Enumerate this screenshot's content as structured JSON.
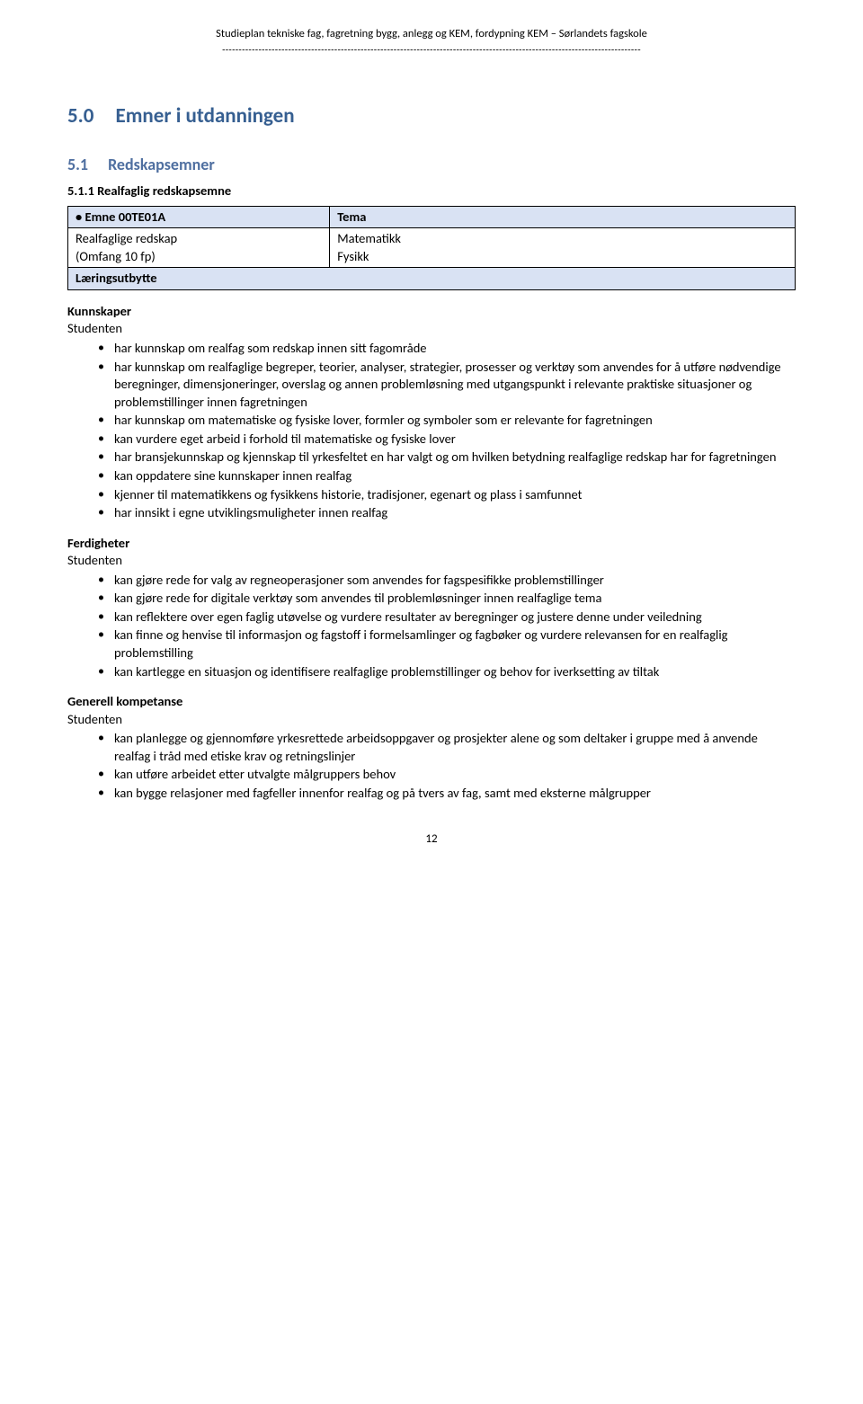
{
  "header": {
    "title": "Studieplan tekniske fag, fagretning bygg, anlegg og KEM, fordypning KEM – Sørlandets fagskole",
    "dashes": "-------------------------------------------------------------------------------------------------------------------------------"
  },
  "section": {
    "number": "5.0",
    "title": "Emner i utdanningen"
  },
  "subsection": {
    "number": "5.1",
    "title": "Redskapsemner"
  },
  "subsubsection": {
    "title": "5.1.1 Realfaglig redskapsemne"
  },
  "table": {
    "head_left": "•   Emne 00TE01A",
    "head_right": "Tema",
    "body_left_line1": "Realfaglige redskap",
    "body_left_line2": "(Omfang 10 fp)",
    "body_right_line1": "Matematikk",
    "body_right_line2": "Fysikk",
    "sub_left": "Læringsutbytte"
  },
  "kunnskaper": {
    "heading": "Kunnskaper",
    "subline": "Studenten",
    "items": [
      "har kunnskap om realfag som redskap innen sitt fagområde",
      "har kunnskap om realfaglige begreper, teorier, analyser, strategier, prosesser og verktøy som anvendes for å utføre nødvendige beregninger, dimensjoneringer, overslag og annen problemløsning med utgangspunkt i relevante praktiske situasjoner og problemstillinger innen fagretningen",
      "har kunnskap om matematiske og fysiske lover, formler og symboler som er relevante for fagretningen",
      "kan vurdere eget arbeid i forhold til matematiske og fysiske lover",
      "har bransjekunnskap og kjennskap til yrkesfeltet en har valgt og om hvilken betydning realfaglige redskap har for fagretningen",
      "kan oppdatere sine kunnskaper innen realfag",
      "kjenner til matematikkens og fysikkens historie, tradisjoner, egenart og plass i samfunnet",
      "har innsikt i egne utviklingsmuligheter innen realfag"
    ]
  },
  "ferdigheter": {
    "heading": "Ferdigheter",
    "subline": "Studenten",
    "items": [
      "kan gjøre rede for valg av regneoperasjoner som anvendes for fagspesifikke problemstillinger",
      "kan gjøre rede for digitale verktøy som anvendes til problemløsninger innen realfaglige tema",
      "kan reflektere over egen faglig utøvelse og vurdere resultater av beregninger og justere denne under veiledning",
      "kan finne og henvise til informasjon og fagstoff i formelsamlinger og fagbøker og vurdere relevansen for en realfaglig problemstilling",
      "kan kartlegge en situasjon og identifisere realfaglige problemstillinger og behov for iverksetting av tiltak"
    ]
  },
  "generell": {
    "heading": "Generell kompetanse",
    "subline": "Studenten",
    "items": [
      "kan planlegge og gjennomføre yrkesrettede arbeidsoppgaver og prosjekter alene og som deltaker i gruppe med å anvende realfag i tråd med etiske krav og retningslinjer",
      "kan utføre arbeidet etter utvalgte målgruppers behov",
      "kan bygge relasjoner med fagfeller innenfor realfag og på tvers av fag, samt med eksterne målgrupper"
    ]
  },
  "page_number": "12"
}
